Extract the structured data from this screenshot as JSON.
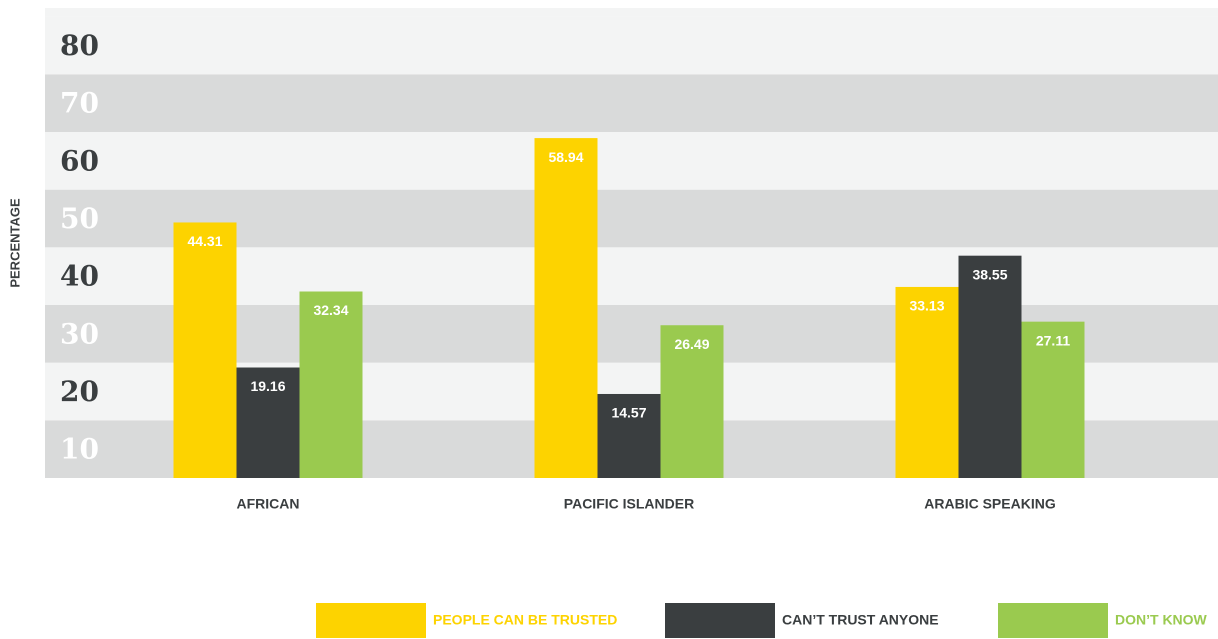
{
  "chart_data": {
    "type": "bar",
    "categories": [
      "AFRICAN",
      "PACIFIC ISLANDER",
      "ARABIC SPEAKING"
    ],
    "series": [
      {
        "name": "PEOPLE CAN BE TRUSTED",
        "color": "#fdd300",
        "values": [
          44.31,
          58.94,
          33.13
        ]
      },
      {
        "name": "CAN’T TRUST ANYONE",
        "color": "#3a3e40",
        "values": [
          19.16,
          14.57,
          38.55
        ]
      },
      {
        "name": "DON’T KNOW",
        "color": "#9aca4f",
        "values": [
          32.34,
          26.49,
          27.11
        ]
      }
    ],
    "y_label": "PERCENTAGE",
    "ylim": [
      0,
      81.5
    ],
    "yticks": [
      10,
      20,
      30,
      40,
      50,
      60,
      70,
      80
    ],
    "grid": true,
    "legend": "bottom"
  }
}
